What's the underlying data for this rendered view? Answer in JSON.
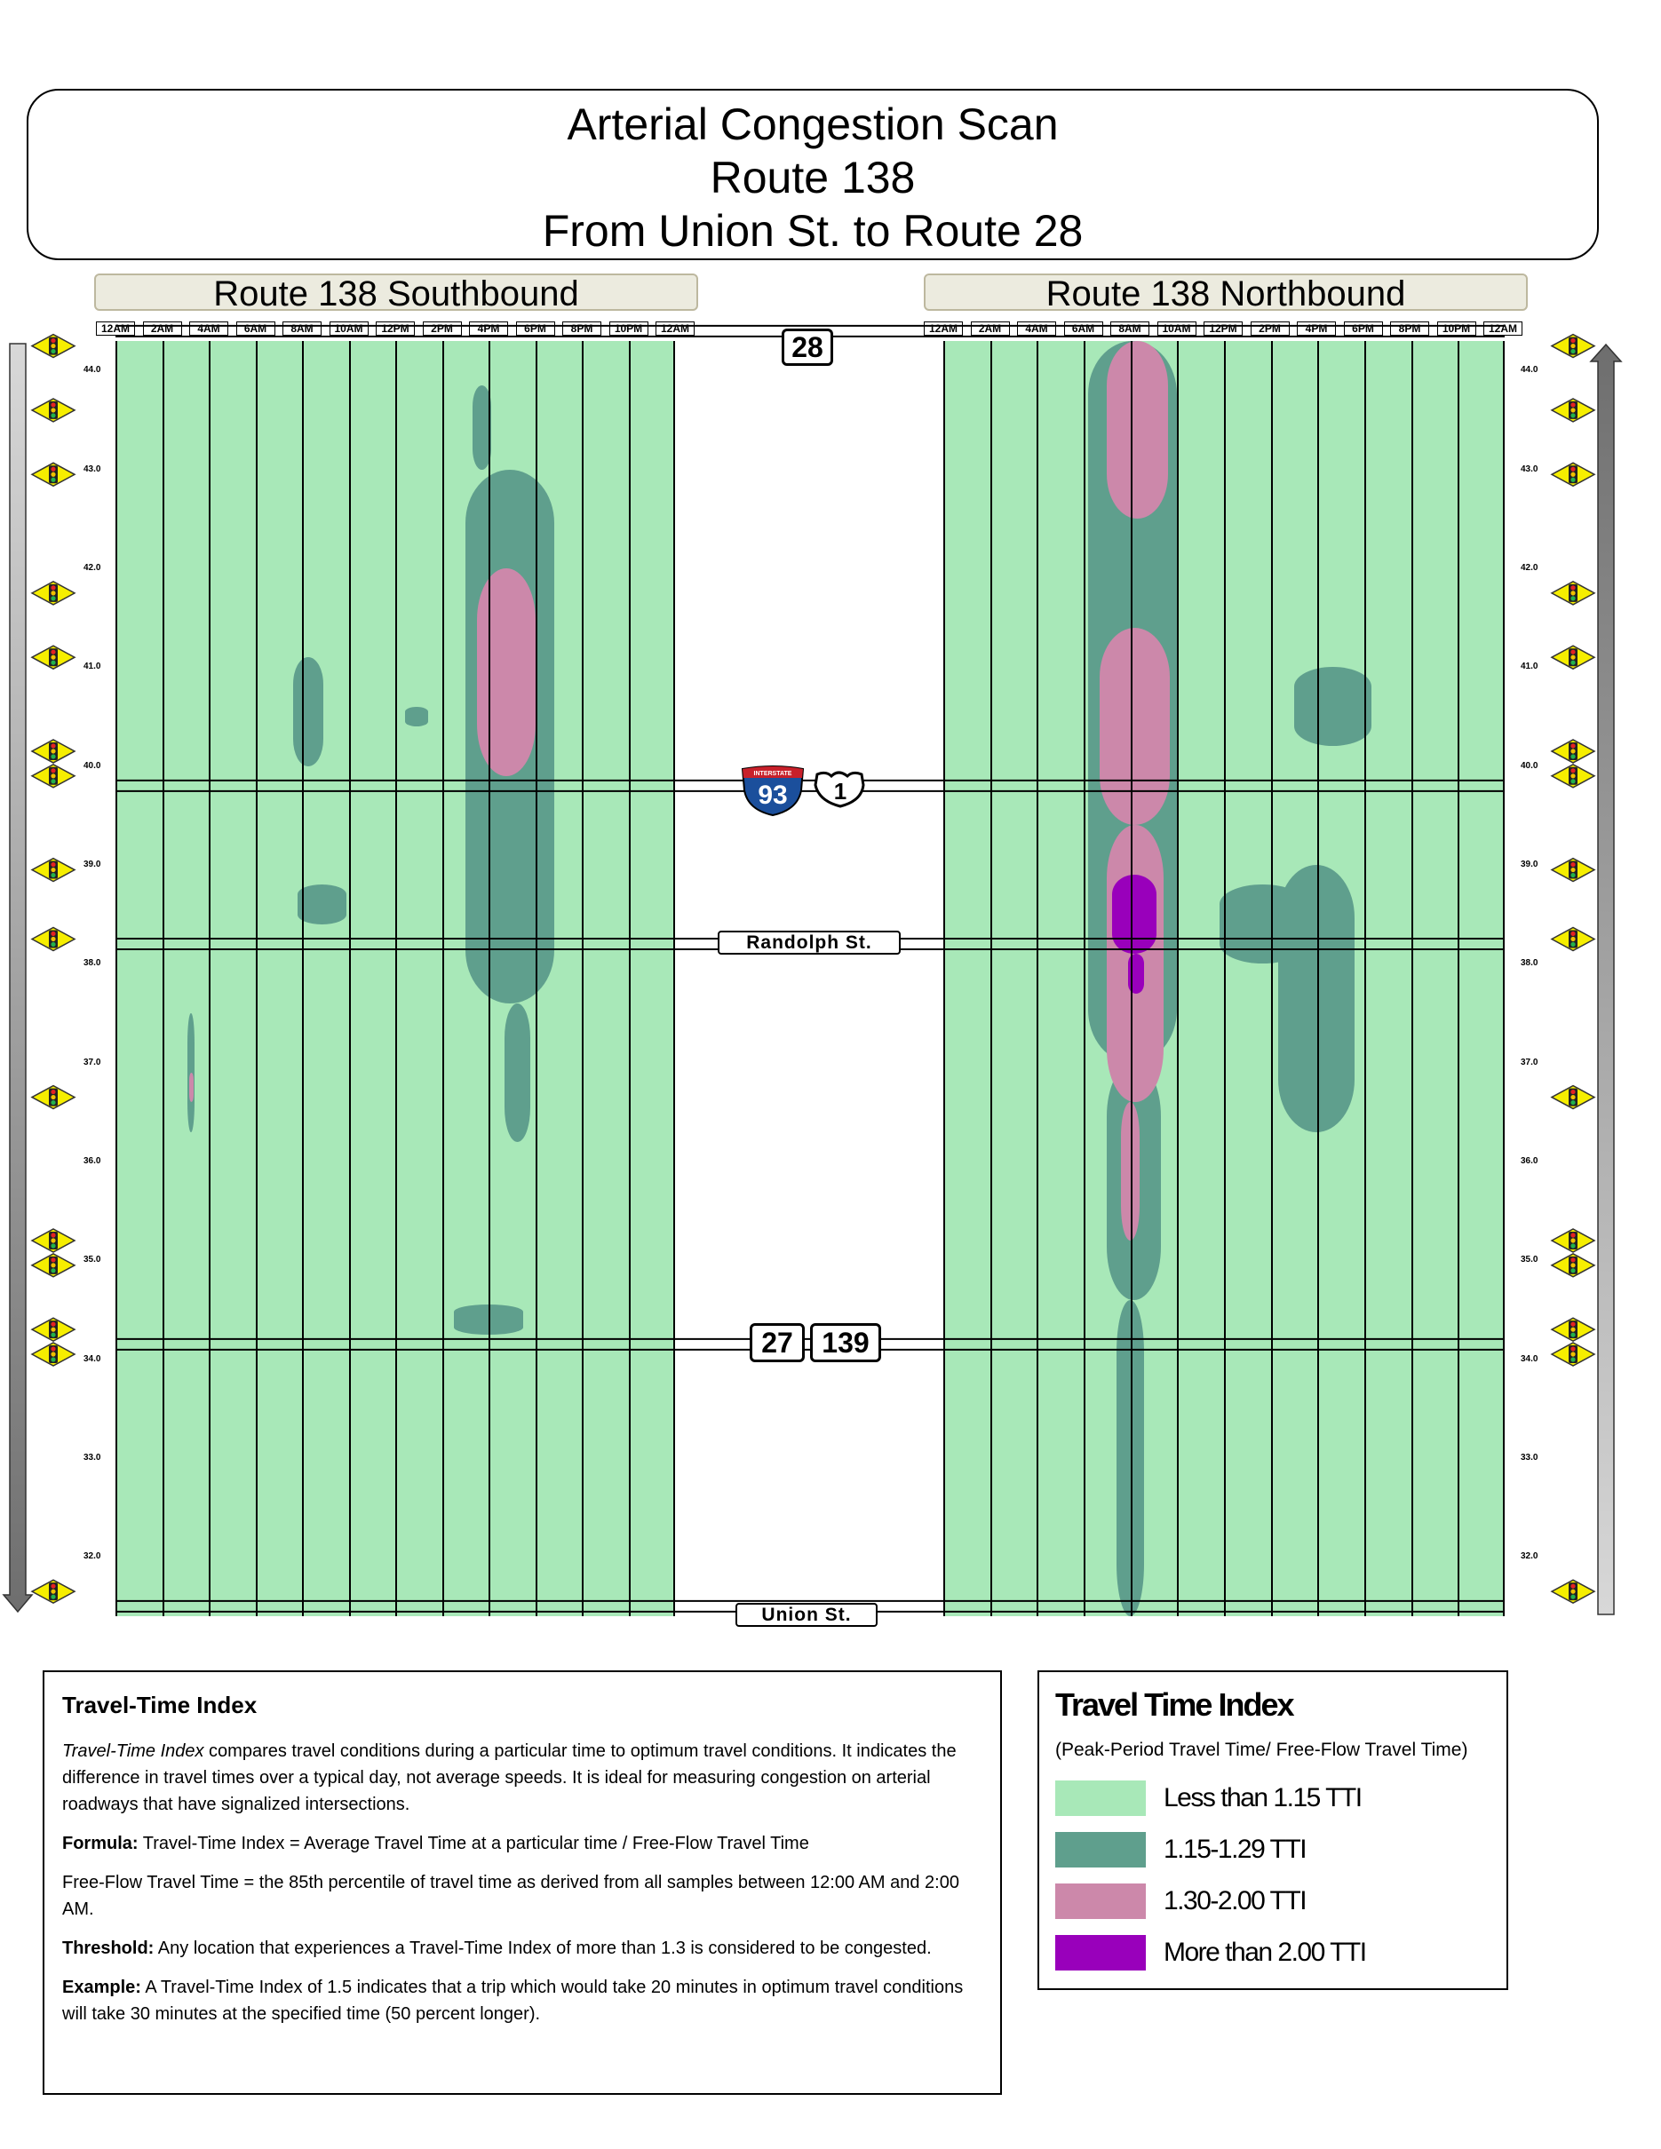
{
  "header": {
    "title_line1": "Arterial Congestion Scan",
    "title_line2": "Route 138",
    "title_line3": "From Union St. to Route 28"
  },
  "directions": {
    "southbound": "Route 138 Southbound",
    "northbound": "Route 138 Northbound"
  },
  "chart_data": {
    "type": "heatmap",
    "title": "Arterial Congestion Scan — Route 138 — From Union St. to Route 28",
    "x_tick_labels": [
      "12AM",
      "2AM",
      "4AM",
      "6AM",
      "8AM",
      "10AM",
      "12PM",
      "2PM",
      "4PM",
      "6PM",
      "8PM",
      "10PM",
      "12AM"
    ],
    "x_range_hours": [
      0,
      24
    ],
    "y_range_miles": [
      31.4,
      44.3
    ],
    "mile_ticks": [
      "44.0",
      "43.0",
      "42.0",
      "41.0",
      "40.0",
      "39.0",
      "38.0",
      "37.0",
      "36.0",
      "35.0",
      "34.0",
      "33.0",
      "32.0"
    ],
    "signal_mileposts": [
      44.25,
      43.6,
      42.95,
      41.75,
      41.1,
      40.15,
      39.9,
      38.95,
      38.25,
      36.65,
      35.2,
      34.95,
      34.3,
      34.05,
      31.65
    ],
    "cross_streets": [
      {
        "name": "28",
        "mile": 44.4,
        "kind": "route"
      },
      {
        "name": "I-93 / US 1",
        "mile": 39.8,
        "kind": "interstate"
      },
      {
        "name": "Randolph St.",
        "mile": 38.2,
        "kind": "street"
      },
      {
        "name": "27 / 139",
        "mile": 34.15,
        "kind": "route"
      },
      {
        "name": "Union St.",
        "mile": 31.5,
        "kind": "street"
      }
    ],
    "categories": [
      "Less than 1.15 TTI",
      "1.15-1.29 TTI",
      "1.30-2.00 TTI",
      "More than 2.00 TTI"
    ],
    "colors": [
      "#a8e8b8",
      "#5f9f8d",
      "#cc88aa",
      "#9900bb"
    ],
    "series": [
      {
        "name": "Route 138 Southbound",
        "regions": [
          {
            "level": 1,
            "t0": 15.0,
            "t1": 18.8,
            "m0": 37.6,
            "m1": 43.0
          },
          {
            "level": 1,
            "t0": 15.3,
            "t1": 16.1,
            "m0": 43.0,
            "m1": 43.85
          },
          {
            "level": 1,
            "t0": 16.7,
            "t1": 17.8,
            "m0": 36.2,
            "m1": 37.6
          },
          {
            "level": 1,
            "t0": 7.6,
            "t1": 8.9,
            "m0": 40.0,
            "m1": 41.1
          },
          {
            "level": 1,
            "t0": 3.1,
            "t1": 3.4,
            "m0": 36.3,
            "m1": 37.5
          },
          {
            "level": 1,
            "t0": 7.8,
            "t1": 9.9,
            "m0": 38.4,
            "m1": 38.8
          },
          {
            "level": 1,
            "t0": 12.4,
            "t1": 13.4,
            "m0": 40.4,
            "m1": 40.6
          },
          {
            "level": 1,
            "t0": 14.5,
            "t1": 17.5,
            "m0": 34.25,
            "m1": 34.55
          },
          {
            "level": 2,
            "t0": 15.5,
            "t1": 18.0,
            "m0": 39.9,
            "m1": 42.0
          },
          {
            "level": 2,
            "t0": 3.15,
            "t1": 3.35,
            "m0": 36.6,
            "m1": 36.9
          }
        ]
      },
      {
        "name": "Route 138 Northbound",
        "regions": [
          {
            "level": 1,
            "t0": 6.2,
            "t1": 10.0,
            "m0": 37.0,
            "m1": 44.3
          },
          {
            "level": 1,
            "t0": 7.0,
            "t1": 9.3,
            "m0": 34.6,
            "m1": 37.0
          },
          {
            "level": 1,
            "t0": 7.4,
            "t1": 8.6,
            "m0": 31.4,
            "m1": 34.6
          },
          {
            "level": 1,
            "t0": 15.0,
            "t1": 18.3,
            "m0": 40.2,
            "m1": 41.0
          },
          {
            "level": 1,
            "t0": 11.8,
            "t1": 15.5,
            "m0": 38.0,
            "m1": 38.8
          },
          {
            "level": 1,
            "t0": 14.3,
            "t1": 17.6,
            "m0": 36.3,
            "m1": 39.0
          },
          {
            "level": 2,
            "t0": 6.7,
            "t1": 9.7,
            "m0": 39.4,
            "m1": 41.4
          },
          {
            "level": 2,
            "t0": 7.0,
            "t1": 9.4,
            "m0": 36.6,
            "m1": 39.4
          },
          {
            "level": 2,
            "t0": 7.6,
            "t1": 8.4,
            "m0": 35.2,
            "m1": 36.6
          },
          {
            "level": 2,
            "t0": 7.0,
            "t1": 9.6,
            "m0": 42.5,
            "m1": 44.3
          },
          {
            "level": 3,
            "t0": 7.2,
            "t1": 9.1,
            "m0": 38.1,
            "m1": 38.9
          },
          {
            "level": 3,
            "t0": 7.9,
            "t1": 8.6,
            "m0": 37.7,
            "m1": 38.1
          }
        ]
      }
    ]
  },
  "info": {
    "heading": "Travel-Time Index",
    "para1_term": "Travel-Time Index",
    "para1_rest": " compares travel conditions during a particular time to optimum travel conditions. It indicates the difference in travel times over a typical day, not average speeds. It is ideal for measuring congestion on arterial roadways that have signalized intersections.",
    "formula_label": "Formula:",
    "formula_text": " Travel-Time Index = Average Travel Time at a particular time / Free-Flow Travel Time",
    "freeflow_text": "Free-Flow Travel Time = the 85th percentile of travel time as derived from all samples between 12:00 AM and 2:00 AM.",
    "threshold_label": "Threshold:",
    "threshold_text": " Any location that experiences a Travel-Time Index of more than 1.3 is considered to be congested.",
    "example_label": "Example:",
    "example_text": " A Travel-Time Index of 1.5 indicates that a trip which would take 20 minutes in optimum travel conditions will take 30 minutes at the specified time (50 percent longer)."
  },
  "legend": {
    "title": "Travel Time Index",
    "subtitle": "(Peak-Period Travel Time/ Free-Flow Travel Time)",
    "items": [
      {
        "label": "Less than 1.15 TTI",
        "color": "#a8e8b8"
      },
      {
        "label": "1.15-1.29 TTI",
        "color": "#5f9f8d"
      },
      {
        "label": "1.30-2.00 TTI",
        "color": "#cc88aa"
      },
      {
        "label": "More than 2.00 TTI",
        "color": "#9900bb"
      }
    ]
  },
  "shields": {
    "route28": "28",
    "interstate_label": "INTERSTATE",
    "interstate_num": "93",
    "us1": "1",
    "route27": "27",
    "route139": "139",
    "randolph": "Randolph St.",
    "union": "Union St."
  }
}
